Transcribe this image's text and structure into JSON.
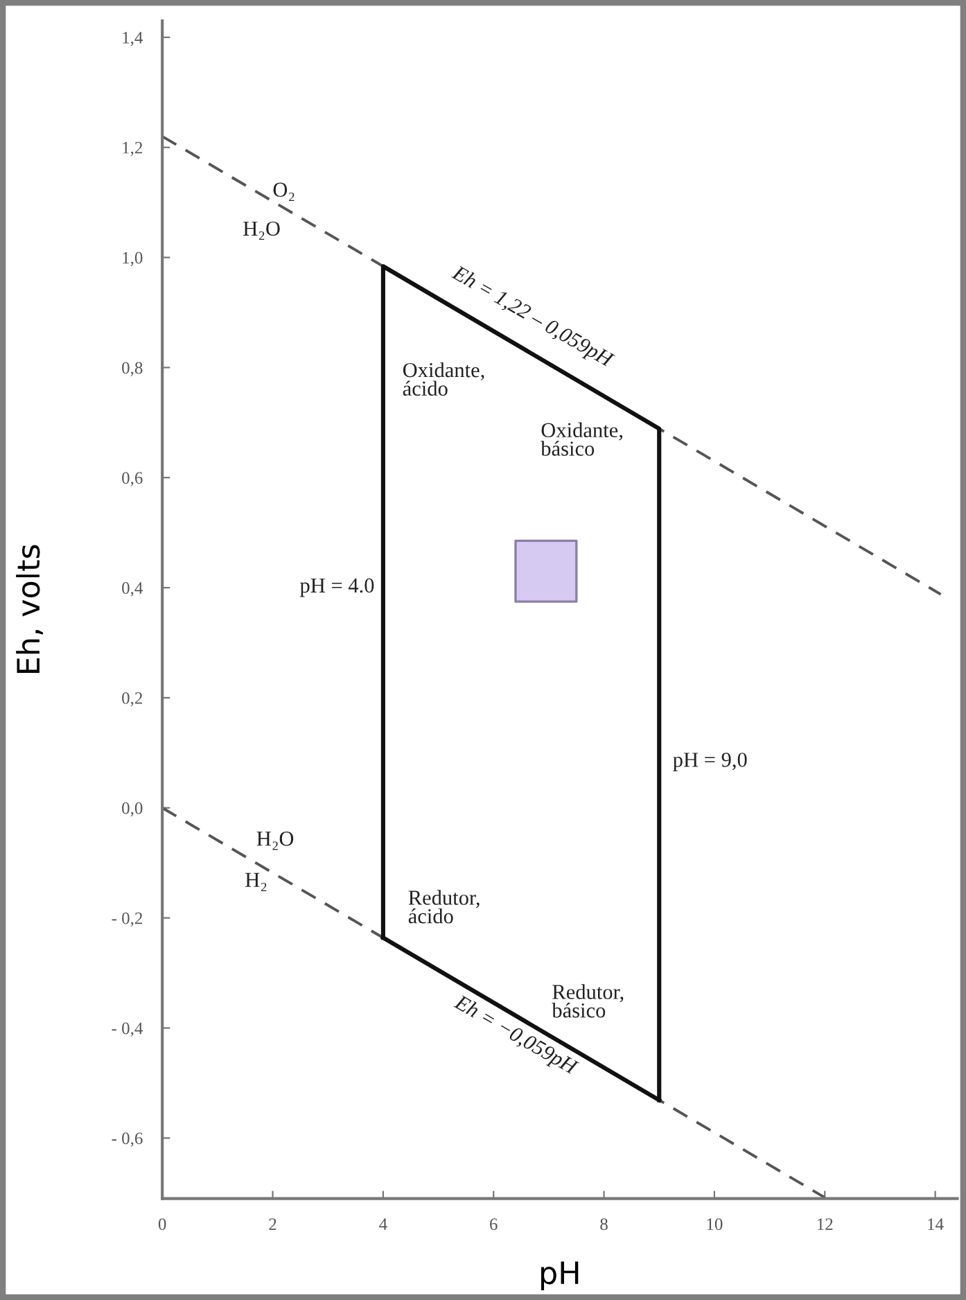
{
  "chart_data": {
    "type": "line",
    "xlabel": "pH",
    "ylabel": "Eh, volts",
    "xlim": [
      0,
      14.4
    ],
    "ylim": [
      -0.71,
      1.43
    ],
    "xticks": [
      0,
      2,
      4,
      6,
      8,
      10,
      12,
      14
    ],
    "yticks": [
      {
        "value": -0.6,
        "label": "- 0,6"
      },
      {
        "value": -0.4,
        "label": "- 0,4"
      },
      {
        "value": -0.2,
        "label": "- 0,2"
      },
      {
        "value": 0,
        "label": "0,0"
      },
      {
        "value": 0.2,
        "label": "0,2"
      },
      {
        "value": 0.4,
        "label": "0,4"
      },
      {
        "value": 0.6,
        "label": "0,6"
      },
      {
        "value": 0.8,
        "label": "0,8"
      },
      {
        "value": 1.0,
        "label": "1,0"
      },
      {
        "value": 1.2,
        "label": "1,2"
      },
      {
        "value": 1.4,
        "label": "1,4"
      }
    ],
    "series": [
      {
        "x": [
          0,
          14.1
        ],
        "values": [
          1.22,
          0.388
        ],
        "color": "#555555",
        "line_style": "dashed"
      },
      {
        "x": [
          0,
          12
        ],
        "values": [
          0,
          -0.708
        ],
        "color": "#555555",
        "line_style": "dashed"
      },
      {
        "x": [
          4,
          4,
          9,
          9
        ],
        "values": [
          -0.236,
          0.984,
          0.689,
          -0.531
        ],
        "color": "#111111",
        "line_style": "solid"
      },
      {
        "x": [
          4,
          9
        ],
        "values": [
          -0.236,
          -0.531
        ],
        "color": "#111111",
        "line_style": "solid"
      },
      {
        "type": "scatter",
        "x": [
          6.95
        ],
        "values": [
          0.43
        ],
        "color": "#d6c9f2",
        "marker": "square"
      }
    ],
    "annotations": [
      "O₂",
      "H₂O",
      "Eh = 1,22 – 0,059pH",
      "Oxidante,\nácido",
      "Oxidante,\nbásico",
      "pH = 4.0",
      "pH = 9,0",
      "H₂O",
      "H₂",
      "Redutor,\nácido",
      "Redutor,\nbásico",
      "Eh = −0,059pH"
    ]
  }
}
